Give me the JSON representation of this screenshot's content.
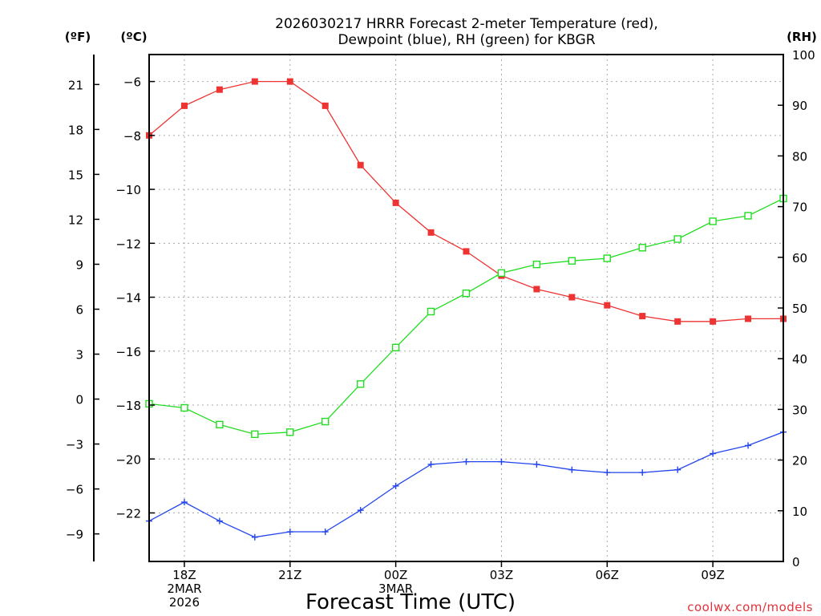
{
  "chart_data": {
    "type": "line",
    "title_line1": "2026030217 HRRR Forecast 2-meter Temperature (red),",
    "title_line2": "Dewpoint (blue), RH (green) for KBGR",
    "xlabel": "Forecast Time (UTC)",
    "credit": "coolwx.com/models",
    "units": {
      "f": "(ºF)",
      "c": "(ºC)",
      "rh": "(RH)"
    },
    "x_hours": [
      17,
      18,
      19,
      20,
      21,
      22,
      23,
      24,
      25,
      26,
      27,
      28,
      29,
      30,
      31,
      32,
      33,
      34,
      35
    ],
    "x_ticks": [
      {
        "hour": 18,
        "lines": [
          "18Z",
          "2MAR",
          "2026"
        ]
      },
      {
        "hour": 21,
        "lines": [
          "21Z"
        ]
      },
      {
        "hour": 24,
        "lines": [
          "00Z",
          "3MAR"
        ]
      },
      {
        "hour": 27,
        "lines": [
          "03Z"
        ]
      },
      {
        "hour": 30,
        "lines": [
          "06Z"
        ]
      },
      {
        "hour": 33,
        "lines": [
          "09Z"
        ]
      }
    ],
    "ylim_c": [
      -23.8,
      -5.0
    ],
    "ylim_rh": [
      0,
      100
    ],
    "y_ticks_c": [
      -6,
      -8,
      -10,
      -12,
      -14,
      -16,
      -18,
      -20,
      -22
    ],
    "y_ticks_f": [
      21,
      18,
      15,
      12,
      9,
      6,
      3,
      0,
      -3,
      -6,
      -9
    ],
    "y_ticks_rh": [
      0,
      10,
      20,
      30,
      40,
      50,
      60,
      70,
      80,
      90,
      100
    ],
    "series": [
      {
        "name": "Temperature",
        "axis": "c",
        "color": "#ee3333",
        "marker": "filled-square",
        "values": [
          -8.0,
          -6.9,
          -6.3,
          -6.0,
          -6.0,
          -6.9,
          -9.1,
          -10.5,
          -11.6,
          -12.3,
          -13.2,
          -13.7,
          -14.0,
          -14.3,
          -14.7,
          -14.9,
          -14.9,
          -14.8,
          -14.8
        ]
      },
      {
        "name": "Dewpoint",
        "axis": "c",
        "color": "#2244ee",
        "marker": "plus",
        "values": [
          -22.3,
          -21.6,
          -22.3,
          -22.9,
          -22.7,
          -22.7,
          -21.9,
          -21.0,
          -20.2,
          -20.1,
          -20.1,
          -20.2,
          -20.4,
          -20.5,
          -20.5,
          -20.4,
          -19.8,
          -19.5,
          -19.0
        ]
      },
      {
        "name": "RH",
        "axis": "rh",
        "color": "#22dd22",
        "marker": "open-square",
        "values": [
          31.1,
          30.3,
          27.0,
          25.1,
          25.5,
          27.6,
          35.0,
          42.2,
          49.3,
          52.9,
          56.9,
          58.6,
          59.3,
          59.8,
          61.9,
          63.6,
          67.1,
          68.2,
          71.6
        ]
      }
    ]
  }
}
